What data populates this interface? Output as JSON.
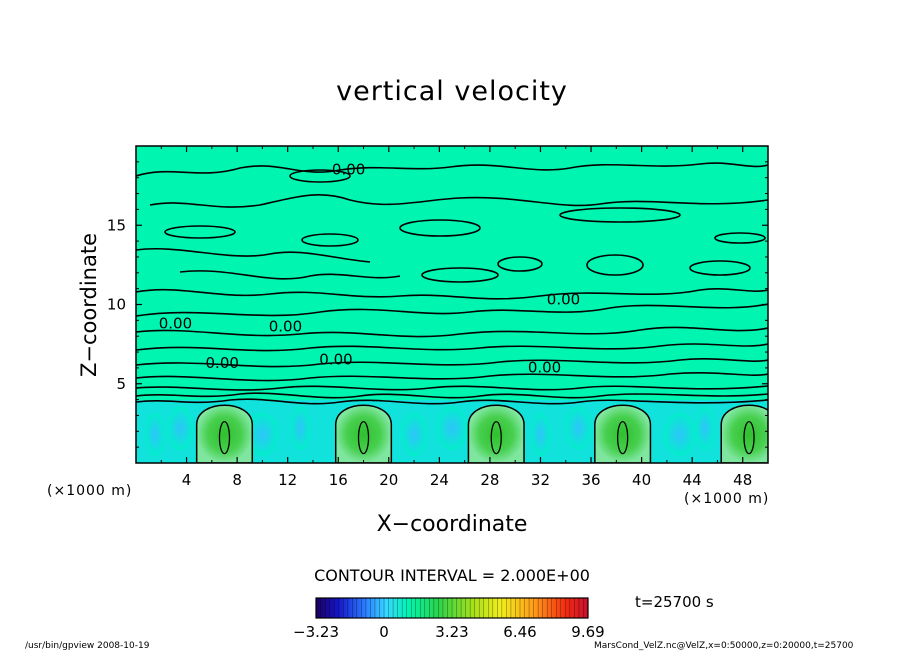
{
  "chart_data": {
    "type": "heatmap",
    "title": "vertical velocity",
    "xlabel": "X−coordinate",
    "ylabel": "Z−coordinate",
    "x_unit": "(×1000 m)",
    "z_unit": "(×1000 m)",
    "xlim": [
      0,
      50
    ],
    "ylim": [
      0,
      20
    ],
    "x_ticks": [
      "4",
      "8",
      "12",
      "16",
      "20",
      "24",
      "28",
      "32",
      "36",
      "40",
      "44",
      "48"
    ],
    "y_ticks": [
      "5",
      "10",
      "15"
    ],
    "contour_labels": [
      "0.00",
      "0.00",
      "0.00",
      "0.00",
      "0.00",
      "0.00",
      "0.00"
    ],
    "updraft_centers_x": [
      7,
      18,
      28.5,
      38.5,
      48.5
    ],
    "updraft_max_height": 3.8,
    "colorbar": {
      "min": -3.23,
      "max": 9.69,
      "ticks": [
        "−3.23",
        "0",
        "3.23",
        "6.46",
        "9.69"
      ]
    },
    "contour_interval": "CONTOUR INTERVAL = 2.000E+00",
    "time": "t=25700 s"
  },
  "footer": {
    "left": "/usr/bin/gpview   2008-10-19",
    "right": "MarsCond_VelZ.nc@VelZ,x=0:50000,z=0:20000,t=25700"
  },
  "colors": {
    "background_field": "#00f5b0",
    "updraft": "#3cc83c",
    "downdraft": "#46d2ff"
  }
}
